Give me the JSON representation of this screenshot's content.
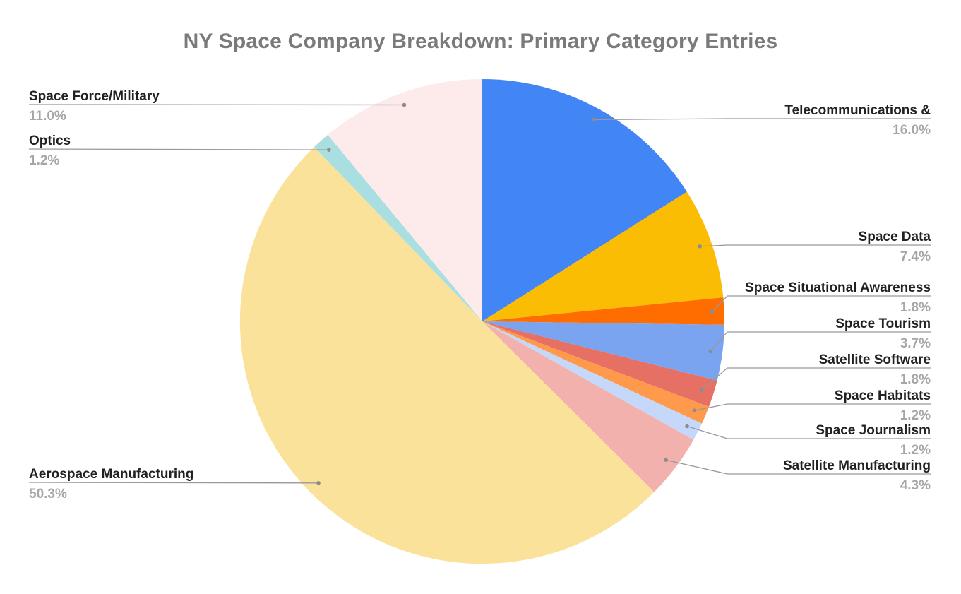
{
  "title": "NY Space Company Breakdown: Primary Category Entries",
  "chart_data": {
    "type": "pie",
    "title": "NY Space Company Breakdown: Primary Category Entries",
    "direction": "clockwise",
    "start_angle_deg": 0,
    "legend_position": "outside-callout-labels",
    "slices": [
      {
        "label": "Telecommunications &",
        "value": 16.0,
        "pct_label": "16.0%",
        "color": "#4285F4",
        "side": "right"
      },
      {
        "label": "Space Data",
        "value": 7.4,
        "pct_label": "7.4%",
        "color": "#FBBC04",
        "side": "right"
      },
      {
        "label": "Space Situational Awareness",
        "value": 1.8,
        "pct_label": "1.8%",
        "color": "#FF6D01",
        "side": "right"
      },
      {
        "label": "Space Tourism",
        "value": 3.7,
        "pct_label": "3.7%",
        "color": "#7AA3F0",
        "side": "right"
      },
      {
        "label": "Satellite Software",
        "value": 1.8,
        "pct_label": "1.8%",
        "color": "#E77064",
        "side": "right"
      },
      {
        "label": "Space Habitats",
        "value": 1.2,
        "pct_label": "1.2%",
        "color": "#FF9A4D",
        "side": "right"
      },
      {
        "label": "Space Journalism",
        "value": 1.2,
        "pct_label": "1.2%",
        "color": "#C5D8FA",
        "side": "right"
      },
      {
        "label": "Satellite Manufacturing",
        "value": 4.3,
        "pct_label": "4.3%",
        "color": "#F2B1AC",
        "side": "right"
      },
      {
        "label": "Aerospace Manufacturing",
        "value": 50.3,
        "pct_label": "50.3%",
        "color": "#FBE29B",
        "side": "left"
      },
      {
        "label": "Optics",
        "value": 1.2,
        "pct_label": "1.2%",
        "color": "#A9DFE0",
        "side": "left"
      },
      {
        "label": "Space Force/Military",
        "value": 11.0,
        "pct_label": "11.0%",
        "color": "#FDEAEB",
        "side": "left"
      }
    ]
  },
  "colors": {
    "background": "#FFFFFF",
    "title_text": "#7A7A7A",
    "label_text": "#212121",
    "pct_text": "#A6A6A6",
    "leader_line": "#999999",
    "leader_dot": "#8C8C8C"
  }
}
